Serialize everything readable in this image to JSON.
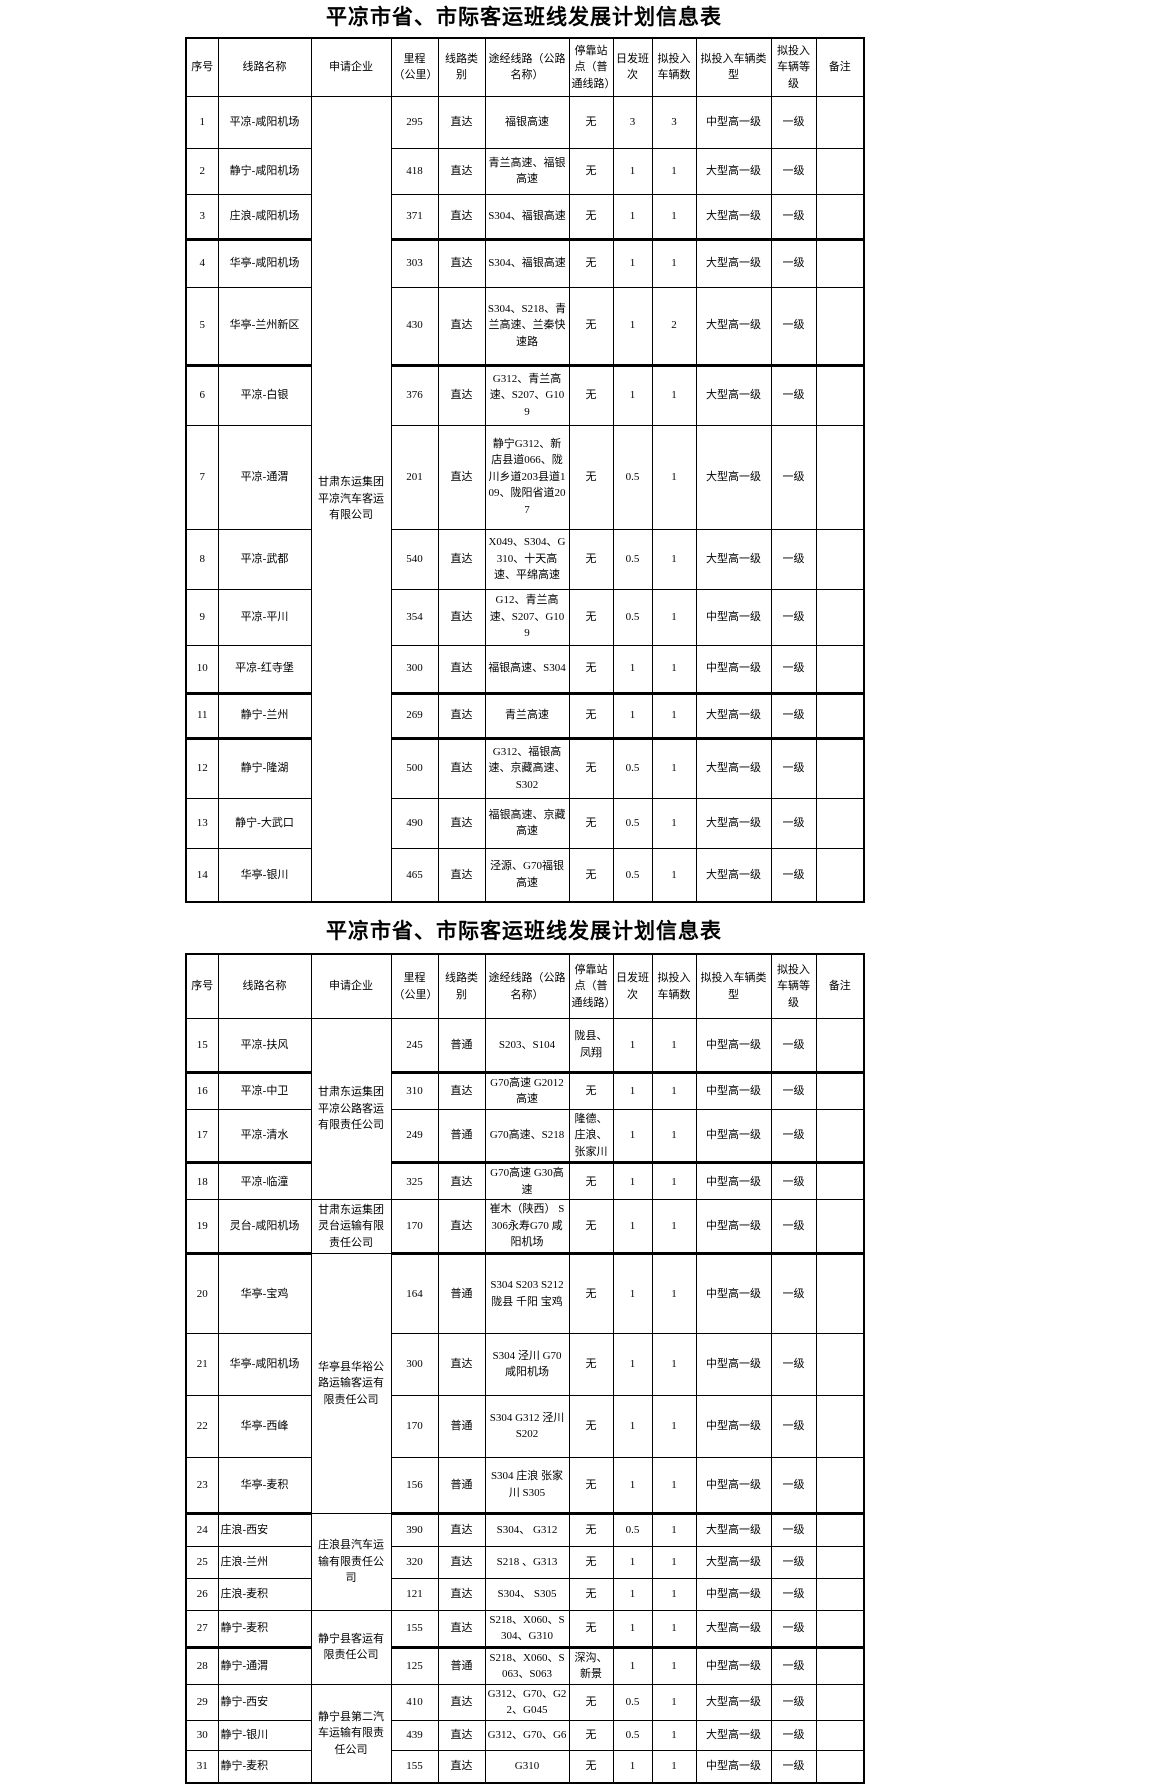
{
  "titles": {
    "table1": "平凉市省、市际客运班线发展计划信息表",
    "table2": "平凉市省、市际客运班线发展计划信息表"
  },
  "headers": [
    "序号",
    "线路名称",
    "申请企业",
    "里程（公里）",
    "线路类别",
    "途经线路（公路名称）",
    "停靠站点（普通线路）",
    "日发班次",
    "拟投入车辆数",
    "拟投入车辆类型",
    "拟投入车辆等级",
    "备注"
  ],
  "table1": {
    "companies": [
      {
        "name": "甘肃东运集团平凉汽车客运有限公司",
        "start": 0,
        "span": 14
      }
    ],
    "rows": [
      {
        "no": "1",
        "route": "平凉-咸阳机场",
        "mileage": "295",
        "type": "直达",
        "via": "福银高速",
        "stops": "无",
        "daily": "3",
        "vehicles": "3",
        "vtype": "中型高一级",
        "grade": "一级",
        "note": ""
      },
      {
        "no": "2",
        "route": "静宁-咸阳机场",
        "mileage": "418",
        "type": "直达",
        "via": "青兰高速、福银高速",
        "stops": "无",
        "daily": "1",
        "vehicles": "1",
        "vtype": "大型高一级",
        "grade": "一级",
        "note": ""
      },
      {
        "no": "3",
        "route": "庄浪-咸阳机场",
        "mileage": "371",
        "type": "直达",
        "via": "S304、福银高速",
        "stops": "无",
        "daily": "1",
        "vehicles": "1",
        "vtype": "大型高一级",
        "grade": "一级",
        "note": ""
      },
      {
        "no": "4",
        "route": "华亭-咸阳机场",
        "mileage": "303",
        "type": "直达",
        "via": "S304、福银高速",
        "stops": "无",
        "daily": "1",
        "vehicles": "1",
        "vtype": "大型高一级",
        "grade": "一级",
        "note": ""
      },
      {
        "no": "5",
        "route": "华亭-兰州新区",
        "mileage": "430",
        "type": "直达",
        "via": "S304、S218、青兰高速、兰秦快速路",
        "stops": "无",
        "daily": "1",
        "vehicles": "2",
        "vtype": "大型高一级",
        "grade": "一级",
        "note": ""
      },
      {
        "no": "6",
        "route": "平凉-白银",
        "mileage": "376",
        "type": "直达",
        "via": "G312、青兰高速、S207、G109",
        "stops": "无",
        "daily": "1",
        "vehicles": "1",
        "vtype": "大型高一级",
        "grade": "一级",
        "note": ""
      },
      {
        "no": "7",
        "route": "平凉-通渭",
        "mileage": "201",
        "type": "直达",
        "via": "静宁G312、新店县道066、陇川乡道203县道109、陇阳省道207",
        "stops": "无",
        "daily": "0.5",
        "vehicles": "1",
        "vtype": "大型高一级",
        "grade": "一级",
        "note": ""
      },
      {
        "no": "8",
        "route": "平凉-武都",
        "mileage": "540",
        "type": "直达",
        "via": "X049、S304、G310、十天高速、平绵高速",
        "stops": "无",
        "daily": "0.5",
        "vehicles": "1",
        "vtype": "大型高一级",
        "grade": "一级",
        "note": ""
      },
      {
        "no": "9",
        "route": "平凉-平川",
        "mileage": "354",
        "type": "直达",
        "via": "G12、青兰高速、S207、G109",
        "stops": "无",
        "daily": "0.5",
        "vehicles": "1",
        "vtype": "中型高一级",
        "grade": "一级",
        "note": ""
      },
      {
        "no": "10",
        "route": "平凉-红寺堡",
        "mileage": "300",
        "type": "直达",
        "via": "福银高速、S304",
        "stops": "无",
        "daily": "1",
        "vehicles": "1",
        "vtype": "中型高一级",
        "grade": "一级",
        "note": ""
      },
      {
        "no": "11",
        "route": "静宁-兰州",
        "mileage": "269",
        "type": "直达",
        "via": "青兰高速",
        "stops": "无",
        "daily": "1",
        "vehicles": "1",
        "vtype": "大型高一级",
        "grade": "一级",
        "note": ""
      },
      {
        "no": "12",
        "route": "静宁-隆湖",
        "mileage": "500",
        "type": "直达",
        "via": "G312、福银高速、京藏高速、S302",
        "stops": "无",
        "daily": "0.5",
        "vehicles": "1",
        "vtype": "大型高一级",
        "grade": "一级",
        "note": ""
      },
      {
        "no": "13",
        "route": "静宁-大武口",
        "mileage": "490",
        "type": "直达",
        "via": "福银高速、京藏高速",
        "stops": "无",
        "daily": "0.5",
        "vehicles": "1",
        "vtype": "大型高一级",
        "grade": "一级",
        "note": ""
      },
      {
        "no": "14",
        "route": "华亭-银川",
        "mileage": "465",
        "type": "直达",
        "via": "泾源、G70福银高速",
        "stops": "无",
        "daily": "0.5",
        "vehicles": "1",
        "vtype": "大型高一级",
        "grade": "一级",
        "note": ""
      }
    ]
  },
  "table2": {
    "companies": [
      {
        "name": "甘肃东运集团平凉公路客运有限责任公司",
        "start": 0,
        "span": 4
      },
      {
        "name": "甘肃东运集团灵台运输有限责任公司",
        "start": 4,
        "span": 1
      },
      {
        "name": "华亭县华裕公路运输客运有限责任公司",
        "start": 5,
        "span": 4
      },
      {
        "name": "庄浪县汽车运输有限责任公司",
        "start": 9,
        "span": 3
      },
      {
        "name": "静宁县客运有限责任公司",
        "start": 12,
        "span": 2
      },
      {
        "name": "静宁县第二汽车运输有限责任公司",
        "start": 14,
        "span": 3
      }
    ],
    "rows": [
      {
        "no": "15",
        "route": "平凉-扶风",
        "mileage": "245",
        "type": "普通",
        "via": "S203、S104",
        "stops": "陇县、凤翔",
        "daily": "1",
        "vehicles": "1",
        "vtype": "中型高一级",
        "grade": "一级",
        "note": ""
      },
      {
        "no": "16",
        "route": "平凉-中卫",
        "mileage": "310",
        "type": "直达",
        "via": "G70高速 G2012高速",
        "stops": "无",
        "daily": "1",
        "vehicles": "1",
        "vtype": "中型高一级",
        "grade": "一级",
        "note": ""
      },
      {
        "no": "17",
        "route": "平凉-清水",
        "mileage": "249",
        "type": "普通",
        "via": "G70高速、S218",
        "stops": "隆德、庄浪、张家川",
        "daily": "1",
        "vehicles": "1",
        "vtype": "中型高一级",
        "grade": "一级",
        "note": ""
      },
      {
        "no": "18",
        "route": "平凉-临潼",
        "mileage": "325",
        "type": "直达",
        "via": "G70高速 G30高速",
        "stops": "无",
        "daily": "1",
        "vehicles": "1",
        "vtype": "中型高一级",
        "grade": "一级",
        "note": ""
      },
      {
        "no": "19",
        "route": "灵台-咸阳机场",
        "mileage": "170",
        "type": "直达",
        "via": "崔木（陕西） S306永寿G70 咸阳机场",
        "stops": "无",
        "daily": "1",
        "vehicles": "1",
        "vtype": "中型高一级",
        "grade": "一级",
        "note": ""
      },
      {
        "no": "20",
        "route": "华亭-宝鸡",
        "mileage": "164",
        "type": "普通",
        "via": "S304 S203 S212 陇县 千阳 宝鸡",
        "stops": "无",
        "daily": "1",
        "vehicles": "1",
        "vtype": "中型高一级",
        "grade": "一级",
        "note": ""
      },
      {
        "no": "21",
        "route": "华亭-咸阳机场",
        "mileage": "300",
        "type": "直达",
        "via": "S304 泾川 G70 咸阳机场",
        "stops": "无",
        "daily": "1",
        "vehicles": "1",
        "vtype": "中型高一级",
        "grade": "一级",
        "note": ""
      },
      {
        "no": "22",
        "route": "华亭-西峰",
        "mileage": "170",
        "type": "普通",
        "via": "S304 G312 泾川 S202",
        "stops": "无",
        "daily": "1",
        "vehicles": "1",
        "vtype": "中型高一级",
        "grade": "一级",
        "note": ""
      },
      {
        "no": "23",
        "route": "华亭-麦积",
        "mileage": "156",
        "type": "普通",
        "via": "S304 庄浪 张家川 S305",
        "stops": "无",
        "daily": "1",
        "vehicles": "1",
        "vtype": "中型高一级",
        "grade": "一级",
        "note": ""
      },
      {
        "no": "24",
        "route": "庄浪-西安",
        "mileage": "390",
        "type": "直达",
        "via": "S304、 G312",
        "stops": "无",
        "daily": "0.5",
        "vehicles": "1",
        "vtype": "大型高一级",
        "grade": "一级",
        "note": ""
      },
      {
        "no": "25",
        "route": "庄浪-兰州",
        "mileage": "320",
        "type": "直达",
        "via": "S218 、G313",
        "stops": "无",
        "daily": "1",
        "vehicles": "1",
        "vtype": "大型高一级",
        "grade": "一级",
        "note": ""
      },
      {
        "no": "26",
        "route": "庄浪-麦积",
        "mileage": "121",
        "type": "直达",
        "via": "S304、 S305",
        "stops": "无",
        "daily": "1",
        "vehicles": "1",
        "vtype": "中型高一级",
        "grade": "一级",
        "note": ""
      },
      {
        "no": "27",
        "route": "静宁-麦积",
        "mileage": "155",
        "type": "直达",
        "via": "S218、X060、S304、G310",
        "stops": "无",
        "daily": "1",
        "vehicles": "1",
        "vtype": "大型高一级",
        "grade": "一级",
        "note": ""
      },
      {
        "no": "28",
        "route": "静宁-通渭",
        "mileage": "125",
        "type": "普通",
        "via": "S218、X060、S063、S063",
        "stops": "深沟、新景",
        "daily": "1",
        "vehicles": "1",
        "vtype": "中型高一级",
        "grade": "一级",
        "note": ""
      },
      {
        "no": "29",
        "route": "静宁-西安",
        "mileage": "410",
        "type": "直达",
        "via": "G312、G70、G22、G045",
        "stops": "无",
        "daily": "0.5",
        "vehicles": "1",
        "vtype": "大型高一级",
        "grade": "一级",
        "note": ""
      },
      {
        "no": "30",
        "route": "静宁-银川",
        "mileage": "439",
        "type": "直达",
        "via": "G312、G70、G6",
        "stops": "无",
        "daily": "0.5",
        "vehicles": "1",
        "vtype": "大型高一级",
        "grade": "一级",
        "note": ""
      },
      {
        "no": "31",
        "route": "静宁-麦积",
        "mileage": "155",
        "type": "直达",
        "via": "G310",
        "stops": "无",
        "daily": "1",
        "vehicles": "1",
        "vtype": "中型高一级",
        "grade": "一级",
        "note": ""
      }
    ]
  }
}
